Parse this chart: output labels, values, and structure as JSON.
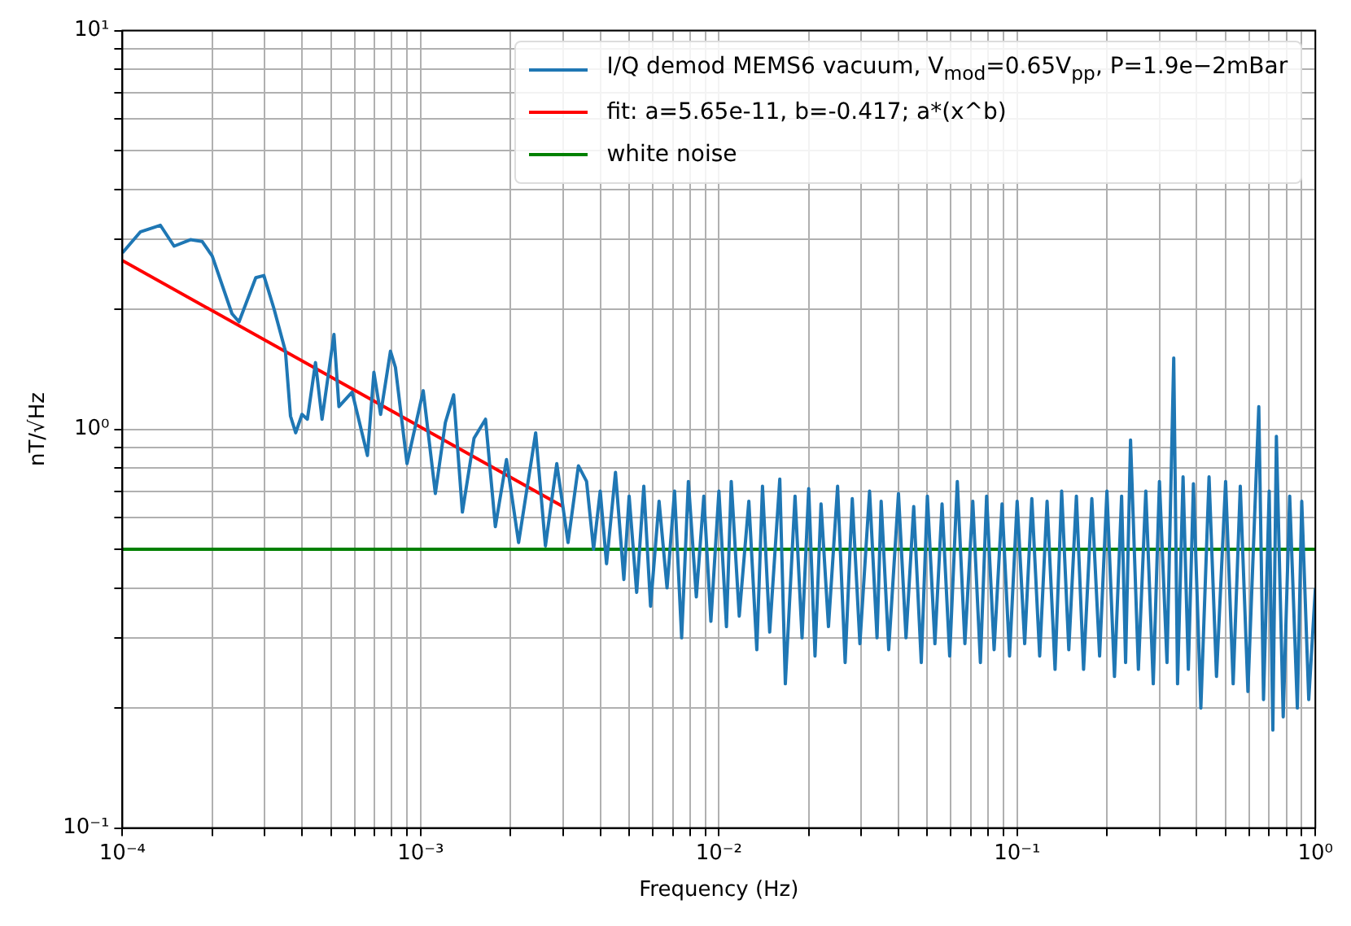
{
  "chart_data": {
    "type": "line",
    "xlabel": "Frequency (Hz)",
    "ylabel": "nT/√Hz",
    "log": "xy",
    "grid": true,
    "legend": "top right",
    "xlim": [
      0.0001,
      1
    ],
    "ylim": [
      0.1,
      10
    ],
    "xticks": [
      {
        "value": 0.0001,
        "label": "10⁻⁴"
      },
      {
        "value": 0.0002,
        "label": null
      },
      {
        "value": 0.0003,
        "label": null
      },
      {
        "value": 0.0004,
        "label": null
      },
      {
        "value": 0.0005,
        "label": null
      },
      {
        "value": 0.0006,
        "label": null
      },
      {
        "value": 0.0007,
        "label": null
      },
      {
        "value": 0.0008,
        "label": null
      },
      {
        "value": 0.0009,
        "label": null
      },
      {
        "value": 0.001,
        "label": "10⁻³"
      },
      {
        "value": 0.002,
        "label": null
      },
      {
        "value": 0.003,
        "label": null
      },
      {
        "value": 0.004,
        "label": null
      },
      {
        "value": 0.005,
        "label": null
      },
      {
        "value": 0.006,
        "label": null
      },
      {
        "value": 0.007,
        "label": null
      },
      {
        "value": 0.008,
        "label": null
      },
      {
        "value": 0.009,
        "label": null
      },
      {
        "value": 0.01,
        "label": "10⁻²"
      },
      {
        "value": 0.02,
        "label": null
      },
      {
        "value": 0.03,
        "label": null
      },
      {
        "value": 0.04,
        "label": null
      },
      {
        "value": 0.05,
        "label": null
      },
      {
        "value": 0.06,
        "label": null
      },
      {
        "value": 0.07,
        "label": null
      },
      {
        "value": 0.08,
        "label": null
      },
      {
        "value": 0.09,
        "label": null
      },
      {
        "value": 0.1,
        "label": "10⁻¹"
      },
      {
        "value": 0.2,
        "label": null
      },
      {
        "value": 0.3,
        "label": null
      },
      {
        "value": 0.4,
        "label": null
      },
      {
        "value": 0.5,
        "label": null
      },
      {
        "value": 0.6,
        "label": null
      },
      {
        "value": 0.7,
        "label": null
      },
      {
        "value": 0.8,
        "label": null
      },
      {
        "value": 0.9,
        "label": null
      },
      {
        "value": 1,
        "label": "10⁰"
      }
    ],
    "yticks": [
      {
        "value": 0.1,
        "label": "10⁻¹"
      },
      {
        "value": 0.2,
        "label": null
      },
      {
        "value": 0.3,
        "label": null
      },
      {
        "value": 0.4,
        "label": null
      },
      {
        "value": 0.5,
        "label": null
      },
      {
        "value": 0.6,
        "label": null
      },
      {
        "value": 0.7,
        "label": null
      },
      {
        "value": 0.8,
        "label": null
      },
      {
        "value": 0.9,
        "label": null
      },
      {
        "value": 1,
        "label": "10⁰"
      },
      {
        "value": 2,
        "label": null
      },
      {
        "value": 3,
        "label": null
      },
      {
        "value": 4,
        "label": null
      },
      {
        "value": 5,
        "label": null
      },
      {
        "value": 6,
        "label": null
      },
      {
        "value": 7,
        "label": null
      },
      {
        "value": 8,
        "label": null
      },
      {
        "value": 9,
        "label": null
      },
      {
        "value": 10,
        "label": "10¹"
      }
    ],
    "series": [
      {
        "name": "I/Q demod MEMS6 vacuum, V$_{mod}$=0.65V$_{pp}$, P=1.9e−2mBar",
        "color": "#1f77b4",
        "type": "line",
        "x": [
          0.0001,
          0.000115,
          0.000134,
          0.000149,
          0.000169,
          0.000185,
          0.0002,
          0.000233,
          0.000246,
          0.00028,
          0.000298,
          0.000322,
          0.000352,
          0.000366,
          0.000381,
          0.0004,
          0.000417,
          0.000444,
          0.000467,
          0.000512,
          0.000532,
          0.000589,
          0.000663,
          0.000697,
          0.000734,
          0.000792,
          0.000823,
          0.0009,
          0.00102,
          0.00112,
          0.00121,
          0.00129,
          0.00138,
          0.00151,
          0.00165,
          0.00178,
          0.00194,
          0.00213,
          0.00243,
          0.00262,
          0.00286,
          0.00312,
          0.00338,
          0.0036,
          0.0038,
          0.004,
          0.0042,
          0.0045,
          0.0048,
          0.005,
          0.0053,
          0.0056,
          0.0059,
          0.0063,
          0.0067,
          0.0071,
          0.0075,
          0.0079,
          0.0084,
          0.0089,
          0.0094,
          0.01,
          0.0106,
          0.011,
          0.0117,
          0.0126,
          0.0134,
          0.014,
          0.0148,
          0.016,
          0.0167,
          0.018,
          0.019,
          0.02,
          0.021,
          0.022,
          0.0233,
          0.025,
          0.0265,
          0.028,
          0.0297,
          0.032,
          0.0339,
          0.035,
          0.0371,
          0.04,
          0.0424,
          0.045,
          0.0477,
          0.05,
          0.053,
          0.056,
          0.0594,
          0.063,
          0.0668,
          0.071,
          0.0753,
          0.079,
          0.0837,
          0.089,
          0.0943,
          0.1,
          0.106,
          0.112,
          0.119,
          0.126,
          0.134,
          0.141,
          0.149,
          0.158,
          0.167,
          0.178,
          0.189,
          0.2,
          0.212,
          0.224,
          0.231,
          0.24,
          0.255,
          0.27,
          0.286,
          0.3,
          0.318,
          0.335,
          0.345,
          0.36,
          0.375,
          0.39,
          0.413,
          0.44,
          0.466,
          0.5,
          0.53,
          0.56,
          0.594,
          0.646,
          0.67,
          0.7,
          0.72,
          0.74,
          0.78,
          0.82,
          0.87,
          0.9,
          0.95,
          1.0
        ],
        "values": [
          2.77,
          3.13,
          3.25,
          2.88,
          2.99,
          2.96,
          2.72,
          1.95,
          1.86,
          2.4,
          2.43,
          2.01,
          1.57,
          1.08,
          0.98,
          1.09,
          1.06,
          1.47,
          1.06,
          1.73,
          1.14,
          1.24,
          0.86,
          1.39,
          1.09,
          1.57,
          1.43,
          0.82,
          1.25,
          0.69,
          1.04,
          1.22,
          0.62,
          0.95,
          1.06,
          0.57,
          0.84,
          0.52,
          0.98,
          0.51,
          0.82,
          0.52,
          0.81,
          0.74,
          0.5,
          0.7,
          0.46,
          0.78,
          0.42,
          0.68,
          0.39,
          0.72,
          0.36,
          0.66,
          0.4,
          0.7,
          0.3,
          0.74,
          0.38,
          0.68,
          0.33,
          0.7,
          0.32,
          0.74,
          0.34,
          0.66,
          0.28,
          0.72,
          0.31,
          0.75,
          0.23,
          0.68,
          0.3,
          0.71,
          0.27,
          0.65,
          0.32,
          0.72,
          0.26,
          0.67,
          0.29,
          0.7,
          0.3,
          0.66,
          0.28,
          0.69,
          0.3,
          0.64,
          0.26,
          0.68,
          0.29,
          0.65,
          0.27,
          0.74,
          0.29,
          0.66,
          0.26,
          0.68,
          0.28,
          0.65,
          0.27,
          0.66,
          0.29,
          0.67,
          0.27,
          0.66,
          0.25,
          0.7,
          0.28,
          0.68,
          0.25,
          0.67,
          0.27,
          0.7,
          0.24,
          0.68,
          0.26,
          0.94,
          0.25,
          0.7,
          0.23,
          0.74,
          0.26,
          1.51,
          0.23,
          0.76,
          0.25,
          0.73,
          0.2,
          0.76,
          0.24,
          0.74,
          0.23,
          0.72,
          0.22,
          1.14,
          0.21,
          0.7,
          0.176,
          0.96,
          0.19,
          0.68,
          0.2,
          0.66,
          0.21,
          0.4
        ]
      },
      {
        "name": "fit: a=5.65e-11, b=-0.417; a*(x^b)",
        "color": "#ff0000",
        "type": "line",
        "x": [
          0.0001,
          0.003
        ],
        "values": [
          2.65,
          0.64
        ]
      },
      {
        "name": "white noise",
        "color": "#008000",
        "type": "line",
        "x": [
          0.0001,
          1
        ],
        "values": [
          0.5,
          0.5
        ]
      }
    ]
  }
}
